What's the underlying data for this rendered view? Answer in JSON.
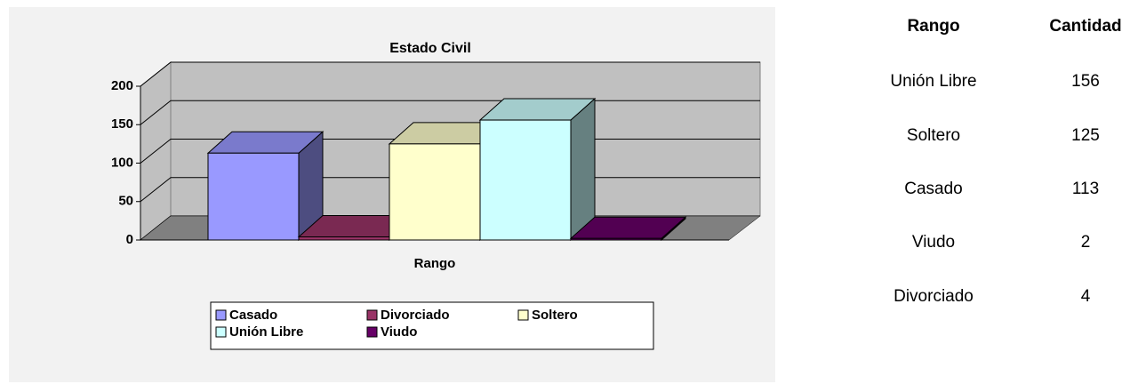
{
  "chart_data": {
    "type": "bar3d",
    "title": "Estado Civil",
    "x_label": "Rango",
    "categories": [
      "Rango"
    ],
    "series": [
      {
        "name": "Casado",
        "color": "#9999ff",
        "values": [
          113
        ]
      },
      {
        "name": "Divorciado",
        "color": "#993366",
        "values": [
          4
        ]
      },
      {
        "name": "Soltero",
        "color": "#ffffcc",
        "values": [
          125
        ]
      },
      {
        "name": "Unión Libre",
        "color": "#ccffff",
        "values": [
          156
        ]
      },
      {
        "name": "Viudo",
        "color": "#660066",
        "values": [
          2
        ]
      }
    ],
    "ylim": [
      0,
      200
    ],
    "yticks": [
      0,
      50,
      100,
      150,
      200
    ],
    "grid": true,
    "legend": "bottom"
  },
  "table": {
    "headers": [
      "Rango",
      "Cantidad"
    ],
    "rows": [
      [
        "Unión Libre",
        "156"
      ],
      [
        "Soltero",
        "125"
      ],
      [
        "Casado",
        "113"
      ],
      [
        "Viudo",
        "2"
      ],
      [
        "Divorciado",
        "4"
      ]
    ]
  }
}
